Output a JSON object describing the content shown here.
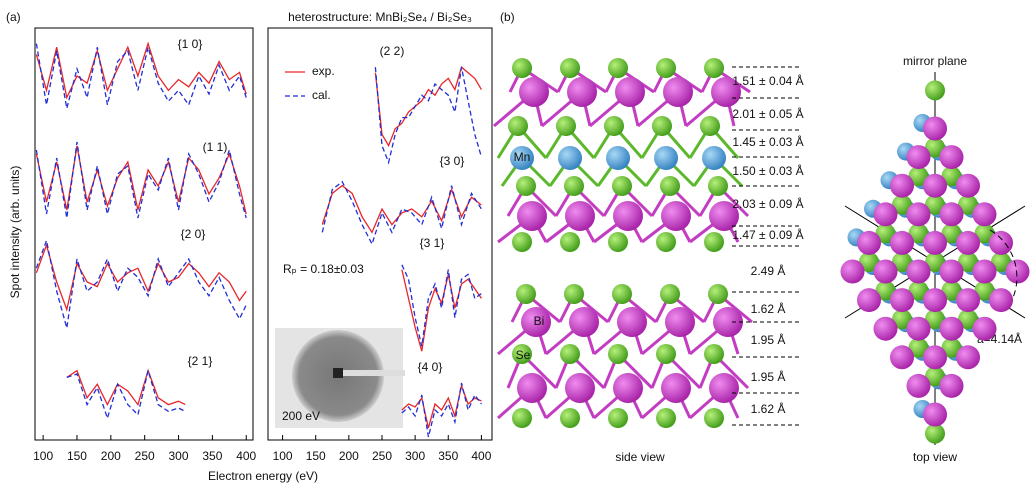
{
  "panel_a": {
    "label": "(a)",
    "title": "heterostructure: MnBi₂Se₄ / Bi₂Se₃",
    "ylabel": "Spot intensity (arb. units)",
    "xlabel": "Electron energy (eV)",
    "xticks": [
      100,
      150,
      200,
      250,
      300,
      350,
      400
    ],
    "panels": [
      {
        "xlim": [
          88,
          410
        ]
      },
      {
        "xlim": [
          78,
          416
        ]
      }
    ],
    "series_style": [
      {
        "name": "exp.",
        "color": "#e8262a",
        "dashed": false
      },
      {
        "name": "cal.",
        "color": "#1f2fd6",
        "dashed": true
      }
    ],
    "rfactor": "Rₚ = 0.18±0.03",
    "inset_label": "200 eV",
    "beams": [
      {
        "label": "{1 0}",
        "panel": 0,
        "x": [
          90,
          105,
          120,
          135,
          150,
          165,
          180,
          195,
          210,
          225,
          240,
          255,
          270,
          285,
          300,
          315,
          330,
          345,
          360,
          375,
          390,
          400
        ],
        "exp": [
          0.8,
          0.3,
          0.9,
          0.2,
          0.5,
          0.4,
          0.85,
          0.3,
          0.6,
          0.9,
          0.5,
          0.95,
          0.5,
          0.3,
          0.45,
          0.35,
          0.55,
          0.4,
          0.7,
          0.45,
          0.55,
          0.25
        ],
        "cal": [
          0.95,
          0.1,
          0.85,
          0.05,
          0.6,
          0.2,
          0.9,
          0.1,
          0.7,
          0.85,
          0.3,
          0.9,
          0.4,
          0.15,
          0.3,
          0.1,
          0.5,
          0.25,
          0.65,
          0.3,
          0.5,
          0.2
        ]
      },
      {
        "label": "(1 1)",
        "panel": 0,
        "x": [
          90,
          105,
          120,
          135,
          150,
          165,
          180,
          195,
          210,
          225,
          240,
          255,
          270,
          285,
          300,
          315,
          330,
          345,
          360,
          375,
          390,
          400
        ],
        "exp": [
          0.8,
          0.2,
          0.7,
          0.1,
          0.9,
          0.2,
          0.6,
          0.15,
          0.5,
          0.7,
          0.1,
          0.6,
          0.4,
          0.7,
          0.2,
          0.75,
          0.6,
          0.3,
          0.5,
          0.8,
          0.4,
          0.05
        ],
        "cal": [
          0.85,
          0.05,
          0.75,
          0.0,
          0.95,
          0.1,
          0.65,
          0.05,
          0.55,
          0.65,
          0.0,
          0.55,
          0.35,
          0.75,
          0.1,
          0.8,
          0.55,
          0.2,
          0.45,
          0.85,
          0.3,
          0.0
        ]
      },
      {
        "label": "{2 0}",
        "panel": 0,
        "x": [
          90,
          105,
          120,
          135,
          150,
          165,
          180,
          195,
          210,
          225,
          240,
          255,
          270,
          285,
          300,
          315,
          330,
          345,
          360,
          375,
          390,
          400
        ],
        "exp": [
          0.6,
          0.9,
          0.5,
          0.2,
          0.7,
          0.5,
          0.45,
          0.7,
          0.5,
          0.6,
          0.65,
          0.4,
          0.7,
          0.5,
          0.55,
          0.7,
          0.6,
          0.45,
          0.6,
          0.5,
          0.3,
          0.4
        ],
        "cal": [
          0.65,
          0.95,
          0.4,
          0.0,
          0.75,
          0.4,
          0.5,
          0.75,
          0.4,
          0.65,
          0.55,
          0.35,
          0.75,
          0.45,
          0.6,
          0.75,
          0.5,
          0.35,
          0.55,
          0.3,
          0.1,
          0.25
        ]
      },
      {
        "label": "{2 1}",
        "panel": 0,
        "x": [
          135,
          150,
          165,
          180,
          195,
          210,
          225,
          240,
          255,
          270,
          285,
          300,
          310
        ],
        "exp": [
          0.7,
          0.8,
          0.4,
          0.6,
          0.3,
          0.6,
          0.5,
          0.3,
          0.8,
          0.4,
          0.3,
          0.35,
          0.3
        ],
        "cal": [
          0.7,
          0.75,
          0.3,
          0.55,
          0.1,
          0.6,
          0.3,
          0.15,
          0.8,
          0.3,
          0.2,
          0.25,
          0.2
        ]
      },
      {
        "label": "(2 2)",
        "panel": 1,
        "x": [
          240,
          250,
          260,
          270,
          280,
          290,
          300,
          310,
          320,
          330,
          340,
          350,
          360,
          370,
          380,
          390,
          400
        ],
        "exp": [
          0.85,
          0.3,
          0.2,
          0.35,
          0.4,
          0.5,
          0.55,
          0.6,
          0.7,
          0.65,
          0.75,
          0.8,
          0.7,
          0.9,
          0.85,
          0.8,
          0.7
        ],
        "cal": [
          0.9,
          0.2,
          0.05,
          0.3,
          0.45,
          0.45,
          0.55,
          0.65,
          0.6,
          0.75,
          0.7,
          0.65,
          0.5,
          0.9,
          0.6,
          0.3,
          0.1
        ]
      },
      {
        "label": "{3 0}",
        "panel": 1,
        "x": [
          160,
          175,
          190,
          205,
          220,
          235,
          250,
          265,
          280,
          295,
          310,
          325,
          340,
          355,
          370,
          385,
          400
        ],
        "exp": [
          0.3,
          0.7,
          0.8,
          0.7,
          0.4,
          0.2,
          0.5,
          0.3,
          0.45,
          0.5,
          0.4,
          0.6,
          0.35,
          0.75,
          0.4,
          0.65,
          0.55
        ],
        "cal": [
          0.2,
          0.75,
          0.85,
          0.6,
          0.3,
          0.05,
          0.45,
          0.2,
          0.5,
          0.45,
          0.3,
          0.65,
          0.25,
          0.8,
          0.3,
          0.7,
          0.5
        ]
      },
      {
        "label": "{3 1}",
        "panel": 1,
        "x": [
          280,
          290,
          300,
          310,
          320,
          330,
          340,
          350,
          360,
          370,
          380,
          390,
          400
        ],
        "exp": [
          0.9,
          0.6,
          0.3,
          0.05,
          0.5,
          0.7,
          0.55,
          0.85,
          0.5,
          0.75,
          0.8,
          0.7,
          0.6
        ],
        "cal": [
          0.95,
          0.8,
          0.4,
          0.1,
          0.6,
          0.75,
          0.5,
          0.9,
          0.4,
          0.8,
          0.85,
          0.6,
          0.65
        ]
      },
      {
        "label": "{4 0}",
        "panel": 1,
        "x": [
          280,
          290,
          300,
          310,
          320,
          330,
          340,
          350,
          360,
          370,
          380,
          390,
          400
        ],
        "exp": [
          0.5,
          0.6,
          0.55,
          0.7,
          0.2,
          0.6,
          0.5,
          0.7,
          0.4,
          0.9,
          0.6,
          0.7,
          0.65
        ],
        "cal": [
          0.45,
          0.55,
          0.4,
          0.75,
          0.05,
          0.5,
          0.4,
          0.6,
          0.3,
          0.95,
          0.5,
          0.75,
          0.6
        ]
      }
    ]
  },
  "panel_b": {
    "label": "(b)",
    "atoms": {
      "mn": "Mn",
      "bi": "Bi",
      "se": "Se"
    },
    "distances": [
      "1.51 ± 0.04 Å",
      "2.01 ± 0.05 Å",
      "1.45 ± 0.03 Å",
      "1.50 ± 0.03 Å",
      "2.03 ± 0.09 Å",
      "1.47 ± 0.09 Å",
      "2.49 Å",
      "1.62 Å",
      "1.95 Å",
      "1.95 Å",
      "1.62 Å"
    ],
    "side_view": "side view",
    "top_view": "top view",
    "mirror": "mirror plane",
    "lattice": "a=4.14Å"
  }
}
